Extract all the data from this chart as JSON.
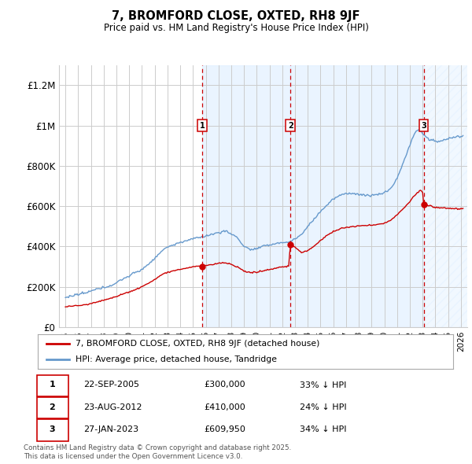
{
  "title": "7, BROMFORD CLOSE, OXTED, RH8 9JF",
  "subtitle": "Price paid vs. HM Land Registry's House Price Index (HPI)",
  "property_label": "7, BROMFORD CLOSE, OXTED, RH8 9JF (detached house)",
  "hpi_label": "HPI: Average price, detached house, Tandridge",
  "transactions": [
    {
      "num": 1,
      "date": "22-SEP-2005",
      "price": 300000,
      "pct": "33% ↓ HPI"
    },
    {
      "num": 2,
      "date": "23-AUG-2012",
      "price": 410000,
      "pct": "24% ↓ HPI"
    },
    {
      "num": 3,
      "date": "27-JAN-2023",
      "price": 609950,
      "pct": "34% ↓ HPI"
    }
  ],
  "transaction_dates_decimal": [
    2005.73,
    2012.64,
    2023.08
  ],
  "transaction_prices": [
    300000,
    410000,
    609950
  ],
  "ylim": [
    0,
    1300000
  ],
  "yticks": [
    0,
    200000,
    400000,
    600000,
    800000,
    1000000,
    1200000
  ],
  "ytick_labels": [
    "£0",
    "£200K",
    "£400K",
    "£600K",
    "£800K",
    "£1M",
    "£1.2M"
  ],
  "xlim_start": 1994.5,
  "xlim_end": 2026.5,
  "property_color": "#cc0000",
  "hpi_color": "#6699cc",
  "background_color": "#ffffff",
  "grid_color": "#cccccc",
  "vline_color": "#cc0000",
  "shade_color": "#ddeeff",
  "footnote": "Contains HM Land Registry data © Crown copyright and database right 2025.\nThis data is licensed under the Open Government Licence v3.0."
}
